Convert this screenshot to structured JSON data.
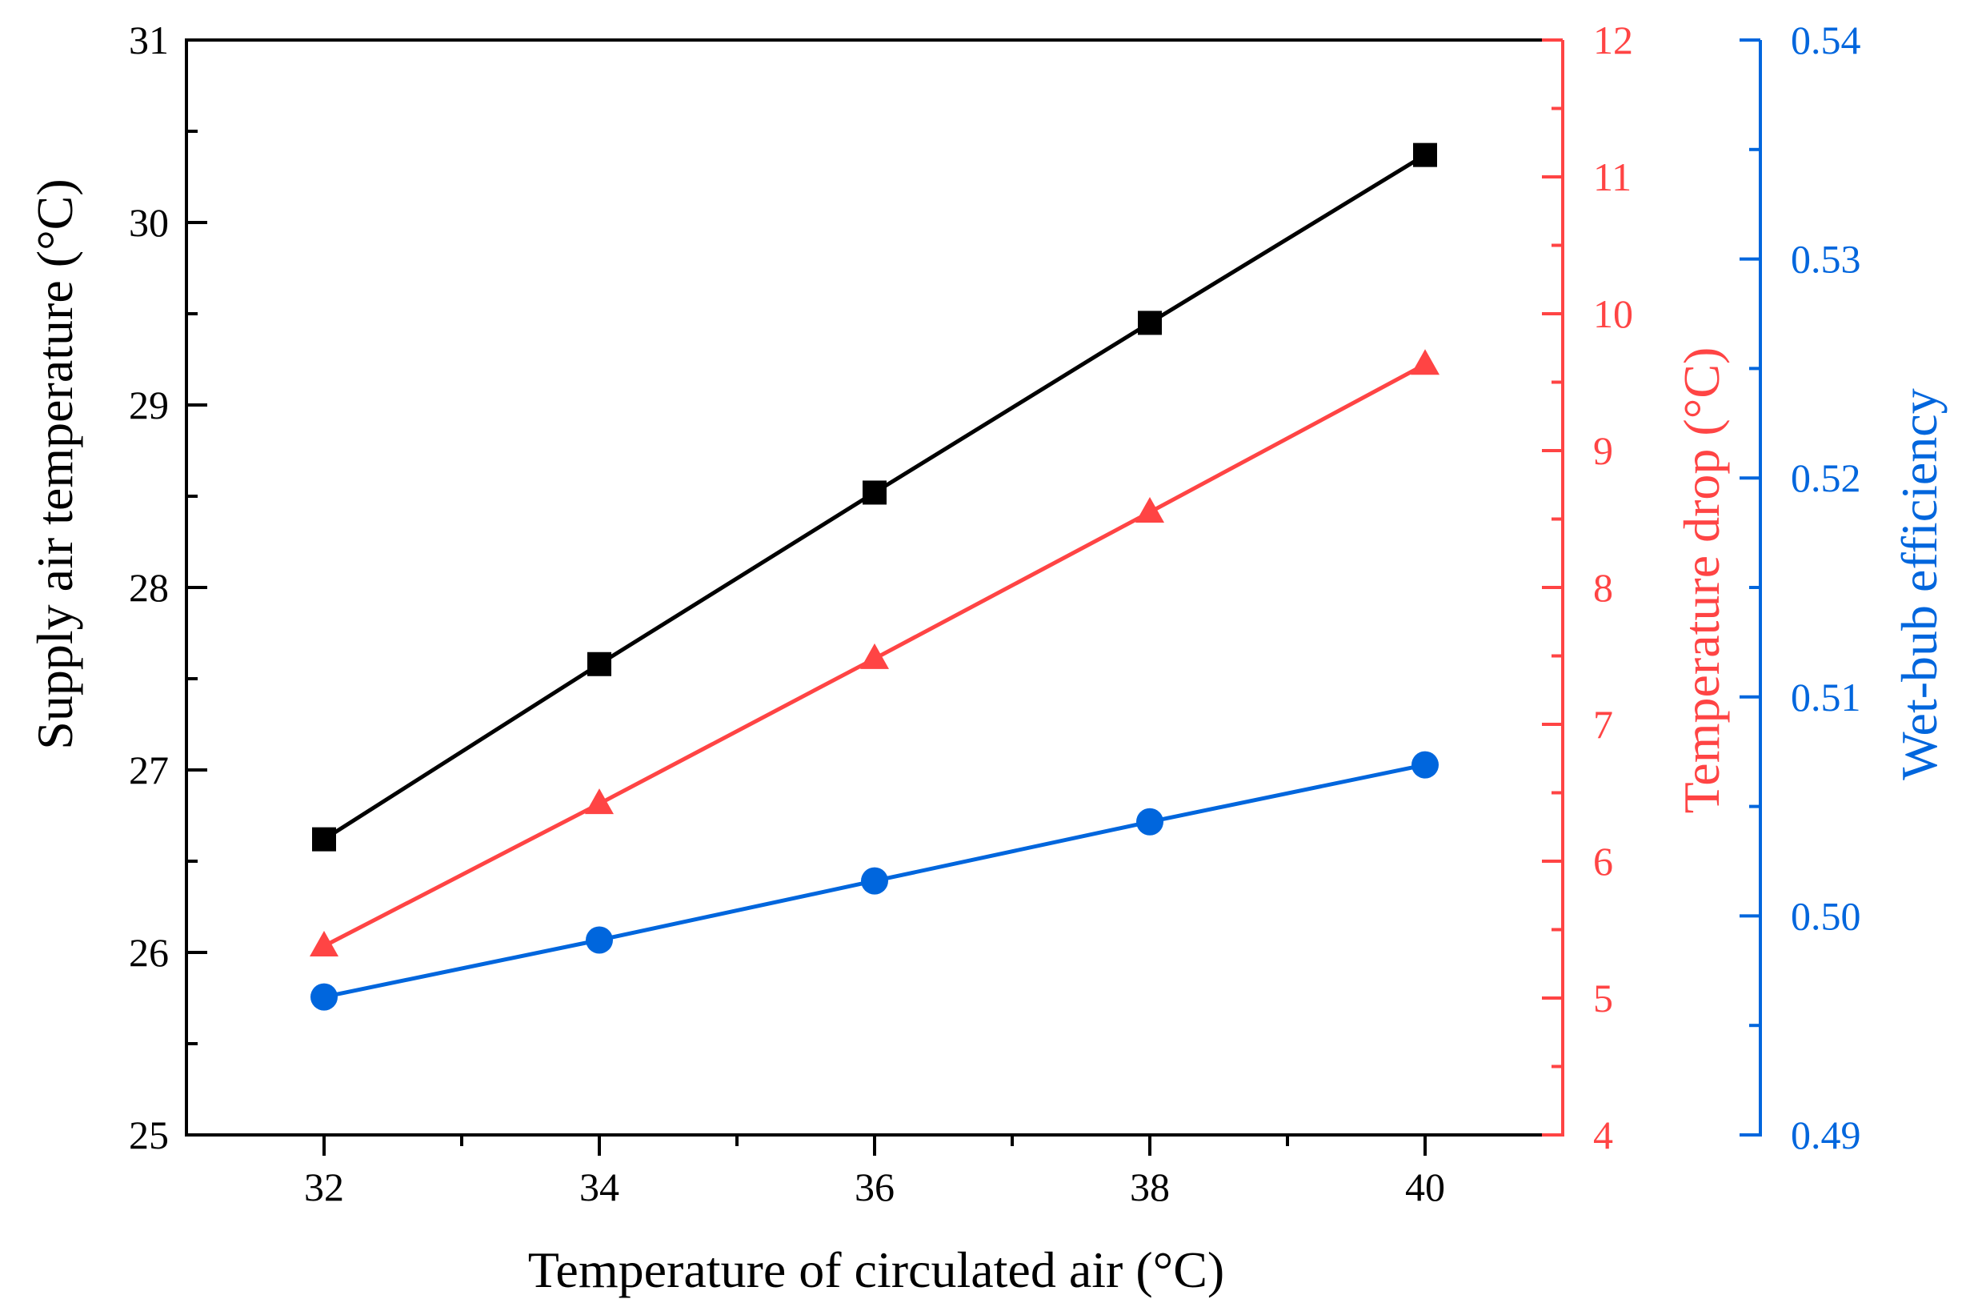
{
  "chart_data": {
    "type": "line",
    "x": [
      32,
      34,
      36,
      38,
      40
    ],
    "xlabel": "Temperature of circulated air (°C)",
    "xlim": [
      31,
      41
    ],
    "x_ticks": [
      "32",
      "34",
      "36",
      "38",
      "40"
    ],
    "grid": false,
    "axes": {
      "left": {
        "label": "Supply air temperature (°C)",
        "ylim": [
          25,
          31
        ],
        "ticks": [
          "25",
          "26",
          "27",
          "28",
          "29",
          "30",
          "31"
        ],
        "color": "#000000"
      },
      "right1": {
        "label": "Temperature drop (°C)",
        "ylim": [
          4,
          12
        ],
        "ticks": [
          "4",
          "5",
          "6",
          "7",
          "8",
          "9",
          "10",
          "11",
          "12"
        ],
        "color": "#ff4444"
      },
      "right2": {
        "label": "Wet-bub efficiency",
        "ylim": [
          0.49,
          0.54
        ],
        "ticks": [
          "0.49",
          "0.50",
          "0.51",
          "0.52",
          "0.53",
          "0.54"
        ],
        "color": "#0066dd"
      }
    },
    "series": [
      {
        "name": "Supply air temperature",
        "axis": "left",
        "marker": "square",
        "color": "#000000",
        "values": [
          26.62,
          27.58,
          28.52,
          29.45,
          30.37
        ]
      },
      {
        "name": "Temperature drop",
        "axis": "right1",
        "marker": "triangle",
        "color": "#ff4444",
        "values": [
          5.38,
          6.42,
          7.48,
          8.55,
          9.63
        ]
      },
      {
        "name": "Wet-bub efficiency",
        "axis": "right2",
        "marker": "circle",
        "color": "#0066dd",
        "values": [
          0.4963,
          0.4989,
          0.5016,
          0.5043,
          0.5069
        ]
      }
    ]
  }
}
